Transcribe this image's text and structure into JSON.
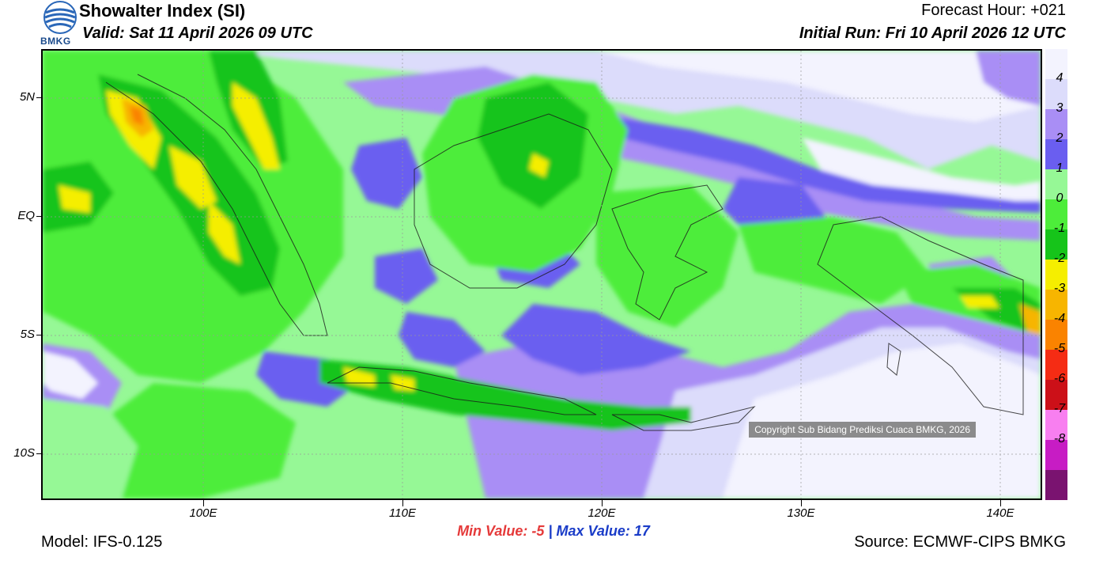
{
  "header": {
    "title": "Showalter Index (SI)",
    "valid": "Valid: Sat 11 April 2026 09 UTC",
    "forecast_hour": "Forecast Hour: +021",
    "initial_run": "Initial Run: Fri 10 April 2026 12 UTC",
    "logo_text": "BMKG"
  },
  "axes": {
    "y_ticks": [
      "5N",
      "EQ",
      "5S",
      "10S"
    ],
    "x_ticks": [
      "100E",
      "110E",
      "120E",
      "130E",
      "140E"
    ]
  },
  "stats": {
    "min_label": "Min Value:",
    "min_value": "-5",
    "separator": "|",
    "max_label": "Max Value:",
    "max_value": "17"
  },
  "footer": {
    "model": "Model: IFS-0.125",
    "source": "Source: ECMWF-CIPS BMKG",
    "copyright": "Copyright Sub Bidang Prediksi Cuaca BMKG, 2026"
  },
  "legend": [
    {
      "label": "4",
      "color": "#dcdcfb"
    },
    {
      "label": "3",
      "color": "#a98ef5"
    },
    {
      "label": "2",
      "color": "#6a5ef0"
    },
    {
      "label": "1",
      "color": "#96f896"
    },
    {
      "label": "0",
      "color": "#4ded3a"
    },
    {
      "label": "-1",
      "color": "#16c41a"
    },
    {
      "label": "-2",
      "color": "#f5ee00"
    },
    {
      "label": "-3",
      "color": "#f7b500"
    },
    {
      "label": "-4",
      "color": "#fa8300"
    },
    {
      "label": "-5",
      "color": "#f52c14"
    },
    {
      "label": "-6",
      "color": "#cc1018"
    },
    {
      "label": "-7",
      "color": "#f87ff0"
    },
    {
      "label": "-8",
      "color": "#c71cc4"
    }
  ],
  "legend_top_color": "#f3f3fe",
  "legend_bottom_color": "#7a1370"
}
